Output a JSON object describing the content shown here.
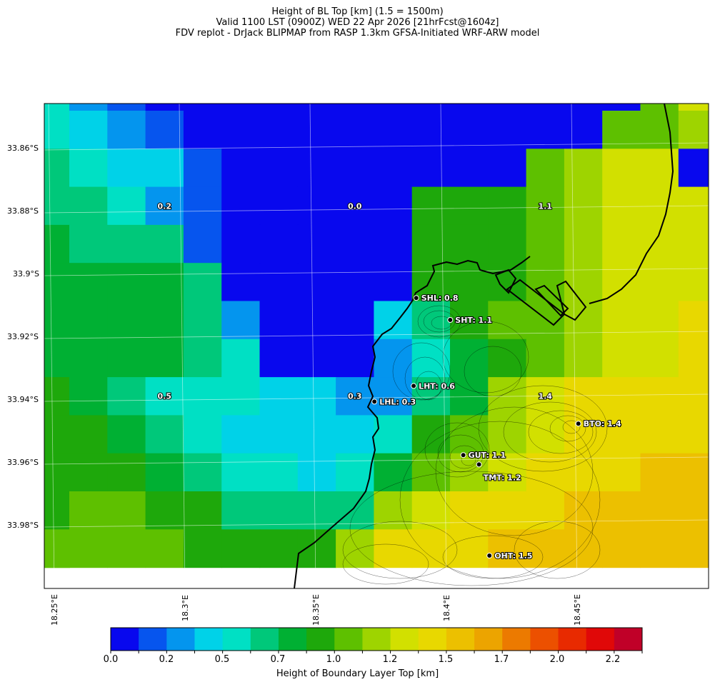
{
  "title_lines": [
    "Height of BL Top [km] (1.5 = 1500m)",
    "Valid 1100 LST (0900Z) WED 22 Apr 2026 [21hrFcst@1604z]",
    "FDV replot - DrJack BLIPMAP from RASP 1.3km GFSA-Initiated WRF-ARW model"
  ],
  "axes": {
    "lat_labels": [
      "33.86°S",
      "33.88°S",
      "33.9°S",
      "33.92°S",
      "33.94°S",
      "33.96°S",
      "33.98°S"
    ],
    "lon_labels": [
      "18.25°E",
      "18.3°E",
      "18.35°E",
      "18.4°E",
      "18.45°E"
    ]
  },
  "colorbar": {
    "title": "Height of Boundary Layer Top [km]",
    "tick_labels": [
      "0.0",
      "0.2",
      "0.5",
      "0.7",
      "1.0",
      "1.2",
      "1.5",
      "1.7",
      "2.0",
      "2.2"
    ],
    "colors": [
      "#0808ee",
      "#0655ee",
      "#0495ee",
      "#00d2e8",
      "#00e0c4",
      "#00c87a",
      "#00b033",
      "#1ea80b",
      "#5ec000",
      "#9ed400",
      "#d2e000",
      "#e8d800",
      "#ecc000",
      "#eca400",
      "#ec7a00",
      "#ec5000",
      "#e82a00",
      "#e00808",
      "#c00028"
    ]
  },
  "grid_values": [
    [
      4,
      2,
      1,
      0,
      0,
      0,
      0,
      0,
      0,
      0,
      0,
      0,
      0,
      0,
      0,
      0,
      8,
      10
    ],
    [
      4,
      3,
      2,
      1,
      0,
      0,
      0,
      0,
      0,
      0,
      0,
      0,
      0,
      0,
      0,
      8,
      8,
      9
    ],
    [
      5,
      4,
      3,
      3,
      1,
      0,
      0,
      0,
      0,
      0,
      0,
      0,
      0,
      8,
      9,
      10,
      10,
      0
    ],
    [
      5,
      5,
      4,
      2,
      1,
      0,
      0,
      0,
      0,
      0,
      7,
      7,
      7,
      8,
      9,
      10,
      10,
      10
    ],
    [
      6,
      5,
      5,
      5,
      1,
      0,
      0,
      0,
      0,
      0,
      7,
      7,
      7,
      8,
      9,
      10,
      10,
      10
    ],
    [
      6,
      6,
      6,
      6,
      5,
      0,
      0,
      0,
      0,
      0,
      7,
      7,
      7,
      8,
      9,
      10,
      10,
      10
    ],
    [
      6,
      6,
      6,
      6,
      5,
      2,
      0,
      0,
      0,
      3,
      5,
      7,
      8,
      8,
      9,
      10,
      10,
      11
    ],
    [
      6,
      6,
      6,
      6,
      5,
      4,
      0,
      0,
      0,
      2,
      4,
      6,
      7,
      8,
      9,
      10,
      10,
      11
    ],
    [
      7,
      6,
      5,
      4,
      4,
      4,
      3,
      3,
      2,
      2,
      5,
      6,
      9,
      10,
      11,
      11,
      11,
      11
    ],
    [
      7,
      7,
      6,
      5,
      4,
      3,
      3,
      3,
      3,
      4,
      7,
      8,
      9,
      10,
      11,
      11,
      11,
      11
    ],
    [
      7,
      7,
      7,
      6,
      5,
      4,
      4,
      3,
      4,
      6,
      8,
      9,
      10,
      11,
      11,
      11,
      12,
      12
    ],
    [
      7,
      8,
      8,
      7,
      7,
      5,
      5,
      5,
      5,
      9,
      10,
      11,
      11,
      11,
      12,
      12,
      12,
      12
    ],
    [
      8,
      8,
      8,
      8,
      7,
      7,
      7,
      7,
      9,
      11,
      11,
      11,
      12,
      12,
      12,
      12,
      12,
      12
    ]
  ],
  "cell_labels": [
    {
      "text": "0.2",
      "row": 3,
      "col": 3
    },
    {
      "text": "0.0",
      "row": 3,
      "col": 8
    },
    {
      "text": "1.1",
      "row": 3,
      "col": 13
    },
    {
      "text": "0.5",
      "row": 8,
      "col": 3
    },
    {
      "text": "0.3",
      "row": 8,
      "col": 8
    },
    {
      "text": "1.4",
      "row": 8,
      "col": 13
    }
  ],
  "stations": [
    {
      "text": "SHL: 0.8",
      "lon": 18.389,
      "lat": -33.908
    },
    {
      "text": "SHT: 1.1",
      "lon": 18.402,
      "lat": -33.915
    },
    {
      "text": "LHT: 0.6",
      "lon": 18.388,
      "lat": -33.936
    },
    {
      "text": "LHL: 0.3",
      "lon": 18.373,
      "lat": -33.941
    },
    {
      "text": "BTO: 1.4",
      "lon": 18.451,
      "lat": -33.948
    },
    {
      "text": "GUT: 1.1",
      "lon": 18.407,
      "lat": -33.958
    },
    {
      "text": "TMT: 1.2",
      "lon": 18.413,
      "lat": -33.961
    },
    {
      "text": "OHT: 1.5",
      "lon": 18.417,
      "lat": -33.99
    }
  ]
}
